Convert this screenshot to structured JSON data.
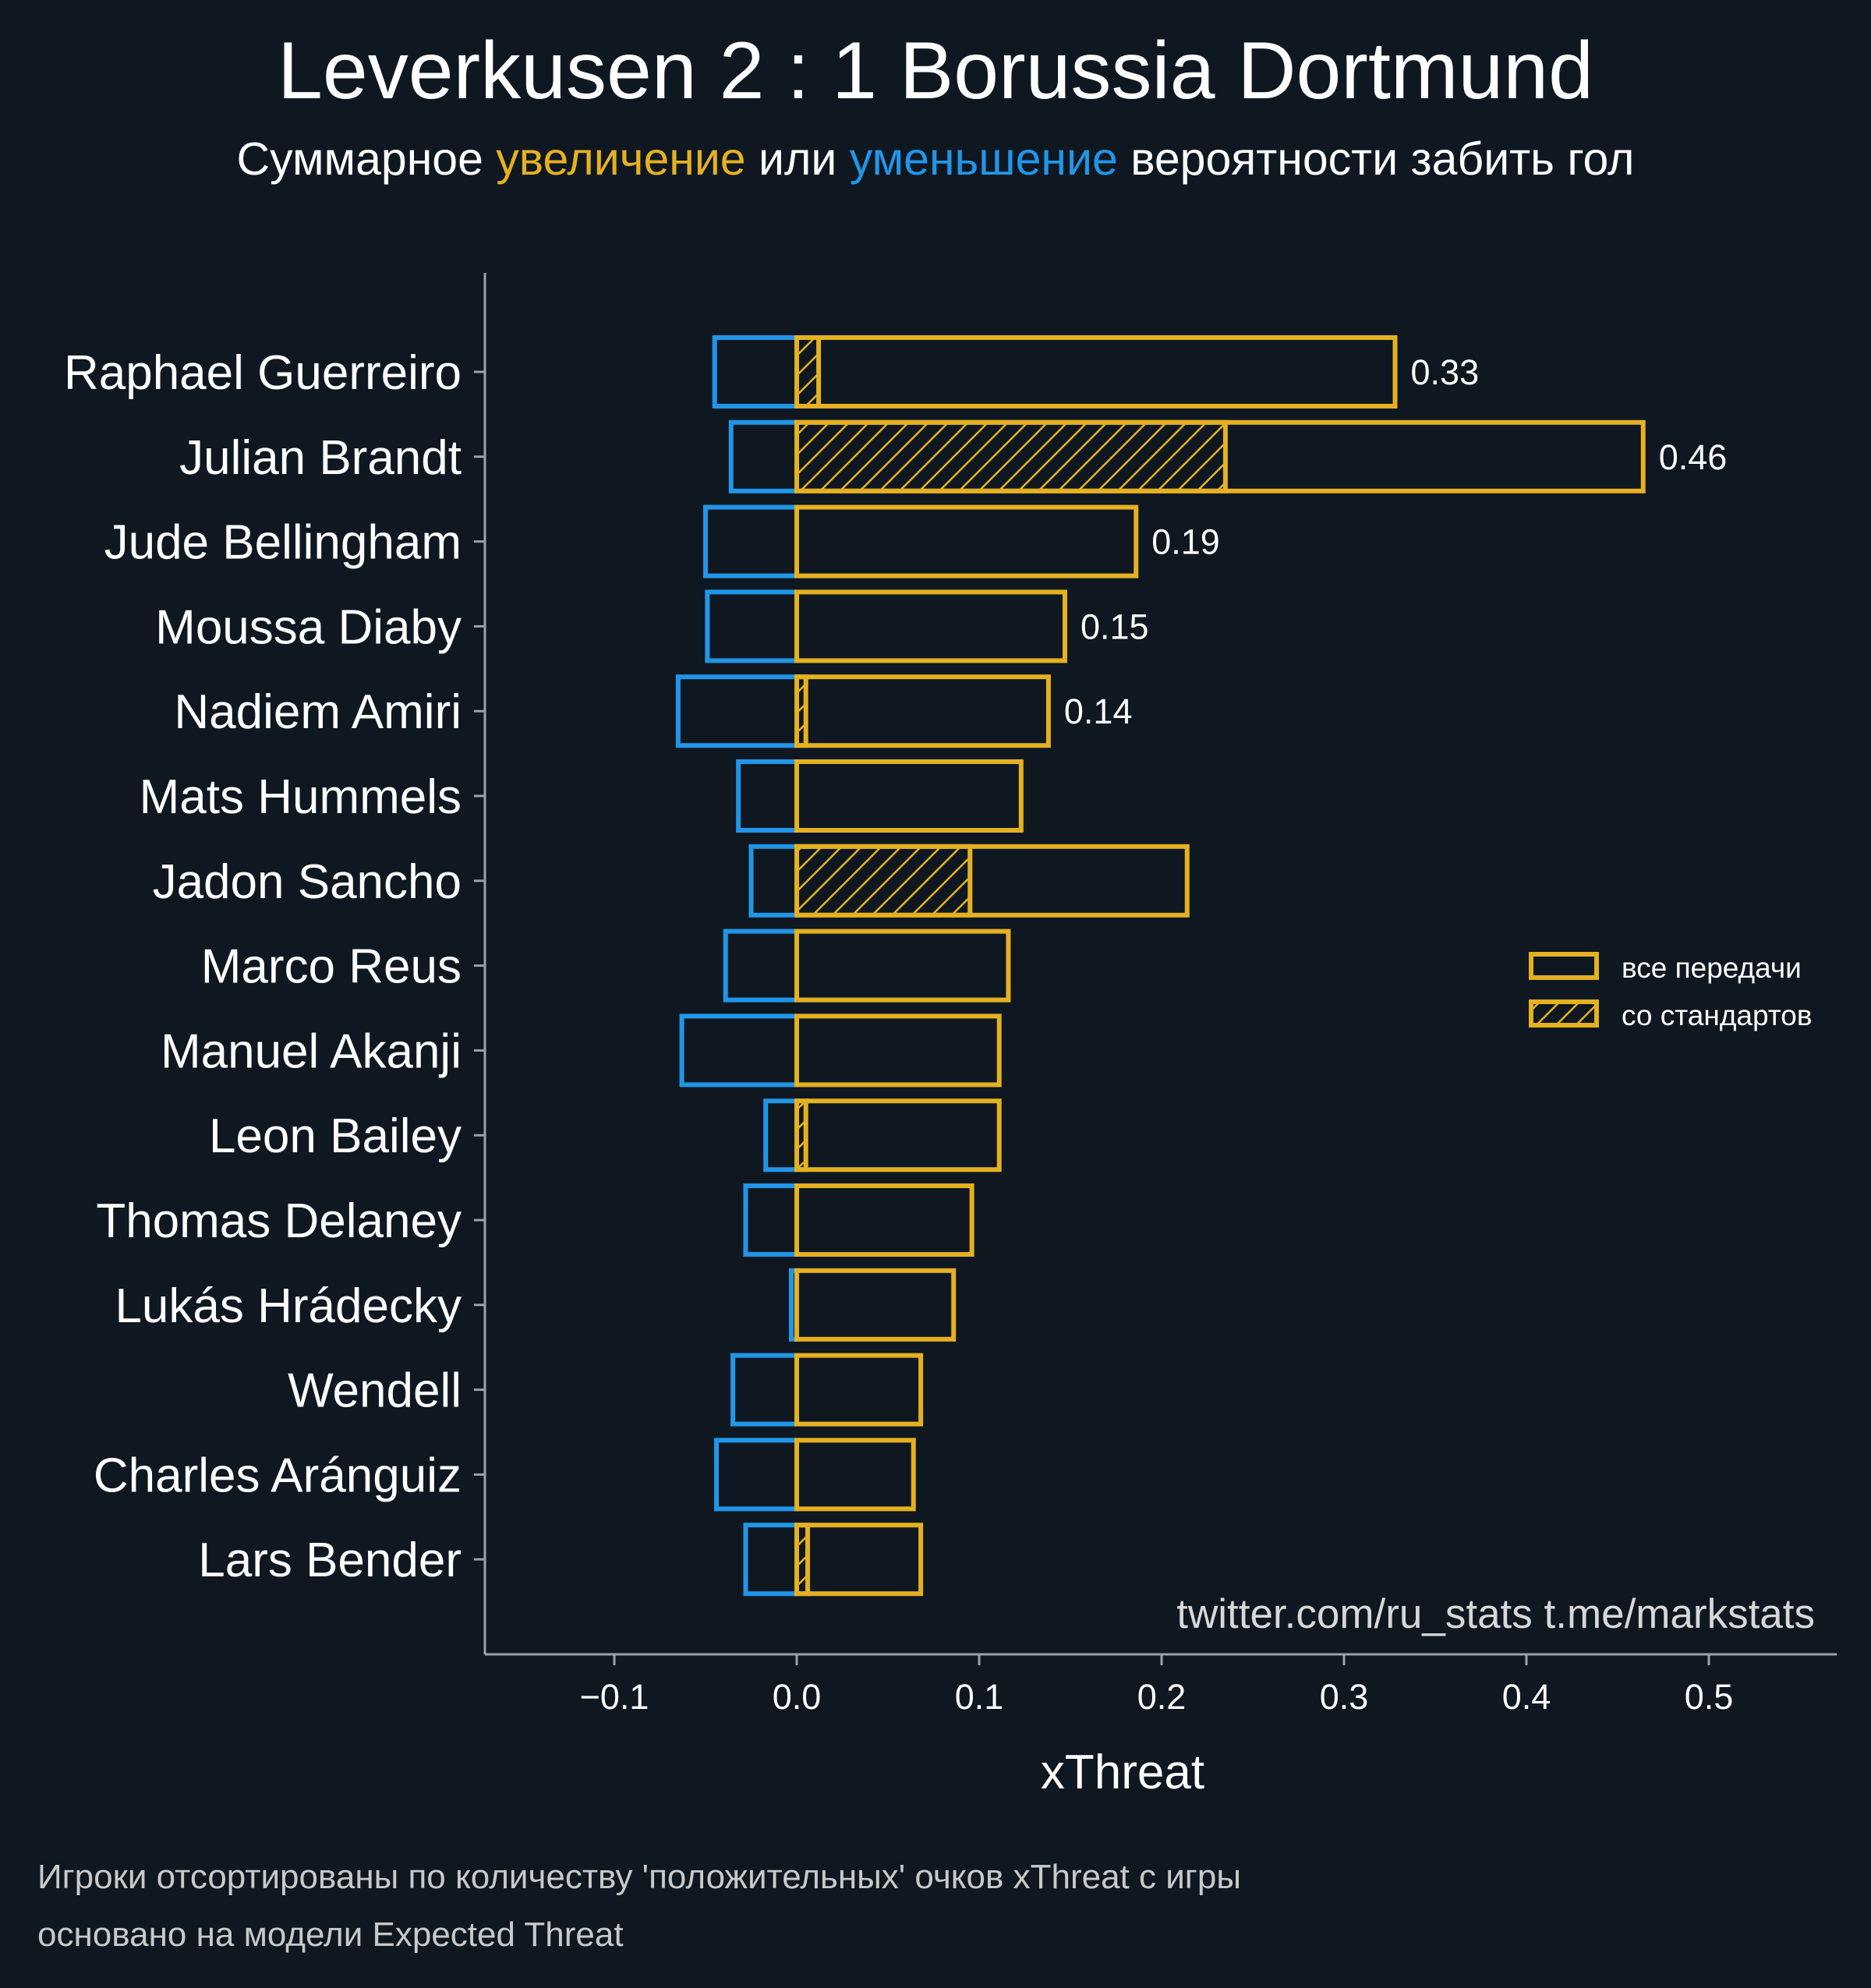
{
  "title": "Leverkusen 2 : 1 Borussia Dortmund",
  "subtitle": {
    "part1": "Суммарное ",
    "positive": "увеличение",
    "part2": " или ",
    "negative": "уменьшение",
    "part3": " вероятности забить гол"
  },
  "colors": {
    "background": "#0f1821",
    "positive": "#e5b122",
    "negative": "#2196e8",
    "axis": "#9aa3aa",
    "text": "#ffffff"
  },
  "chart_data": {
    "type": "bar",
    "orientation": "horizontal",
    "xlabel": "xThreat",
    "xlim": [
      -0.17,
      0.57
    ],
    "xticks": [
      -0.1,
      0.0,
      0.1,
      0.2,
      0.3,
      0.4,
      0.5
    ],
    "xtick_labels": [
      "−0.1",
      "0.0",
      "0.1",
      "0.2",
      "0.3",
      "0.4",
      "0.5"
    ],
    "categories": [
      "Raphael Guerreiro",
      "Julian Brandt",
      "Jude Bellingham",
      "Moussa Diaby",
      "Nadiem Amiri",
      "Mats Hummels",
      "Jadon Sancho",
      "Marco Reus",
      "Manuel Akanji",
      "Leon Bailey",
      "Thomas Delaney",
      "Lukás Hrádecky",
      "Wendell",
      "Charles Aránguiz",
      "Lars Bender"
    ],
    "series": [
      {
        "name": "все передачи",
        "values": [
          0.328,
          0.464,
          0.186,
          0.147,
          0.138,
          0.123,
          0.214,
          0.116,
          0.111,
          0.111,
          0.096,
          0.086,
          0.068,
          0.064,
          0.068
        ]
      },
      {
        "name": "со стандартов",
        "values": [
          0.012,
          0.235,
          0.0,
          0.0,
          0.005,
          0.0,
          0.095,
          0.0,
          0.0,
          0.005,
          0.0,
          0.0,
          0.0,
          0.0,
          0.006
        ]
      },
      {
        "name": "уменьшение",
        "values": [
          -0.045,
          -0.036,
          -0.05,
          -0.049,
          -0.065,
          -0.032,
          -0.025,
          -0.039,
          -0.063,
          -0.017,
          -0.028,
          -0.003,
          -0.035,
          -0.044,
          -0.028
        ]
      }
    ],
    "value_labels": [
      "0.33",
      "0.46",
      "0.19",
      "0.15",
      "0.14",
      "",
      "",
      "",
      "",
      "",
      "",
      "",
      "",
      "",
      ""
    ],
    "legend": {
      "position": "right",
      "entries": [
        "все передачи",
        "со стандартов"
      ]
    }
  },
  "credit": "twitter.com/ru_stats  t.me/markstats",
  "notes": [
    "Игроки отсортированы по количеству 'положительных' очков xThreat с игры",
    "основано на модели Expected Threat"
  ]
}
